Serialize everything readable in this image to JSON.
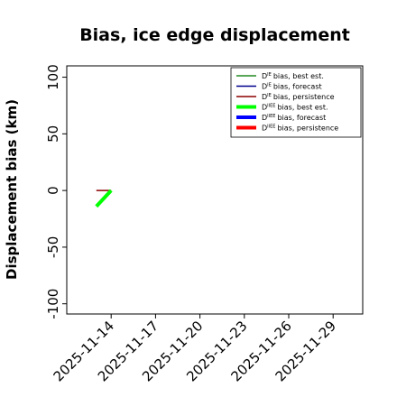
{
  "chart_data": {
    "type": "line",
    "title": "Bias, ice edge displacement",
    "ylabel": "Displacement bias (km)",
    "x": [
      "2025-11-13",
      "2025-11-14"
    ],
    "xlim": [
      "2025-11-11",
      "2025-12-01"
    ],
    "xticks": [
      "2025-11-14",
      "2025-11-17",
      "2025-11-20",
      "2025-11-23",
      "2025-11-26",
      "2025-11-29"
    ],
    "xtick_label_colors": [
      "#000000",
      "#000000",
      "#228b22",
      "#000000",
      "#000000",
      "#000000"
    ],
    "ylim": [
      -109,
      110
    ],
    "yticks": [
      -100,
      -50,
      0,
      50,
      100
    ],
    "legend": "upper right",
    "series": [
      {
        "symbol": "D",
        "superscript": "IE",
        "name": "bias, best est.",
        "color": "#228b22",
        "width": 1.5,
        "values": [
          null,
          null
        ]
      },
      {
        "symbol": "D",
        "superscript": "IE",
        "name": "bias, forecast",
        "color": "#00008b",
        "width": 1.5,
        "values": [
          null,
          null
        ]
      },
      {
        "symbol": "D",
        "superscript": "IE",
        "name": "bias, persistence",
        "color": "#8b0000",
        "width": 1.5,
        "values": [
          0,
          0
        ]
      },
      {
        "symbol": "D",
        "superscript": "IIEE",
        "name": "bias, best est.",
        "color": "#00ff00",
        "width": 4,
        "values": [
          -14,
          0
        ]
      },
      {
        "symbol": "D",
        "superscript": "IIEE",
        "name": "bias, forecast",
        "color": "#0000ff",
        "width": 4,
        "values": [
          null,
          null
        ]
      },
      {
        "symbol": "D",
        "superscript": "IIEE",
        "name": "bias, persistence",
        "color": "#ff0000",
        "width": 4,
        "values": [
          null,
          null
        ]
      }
    ]
  }
}
